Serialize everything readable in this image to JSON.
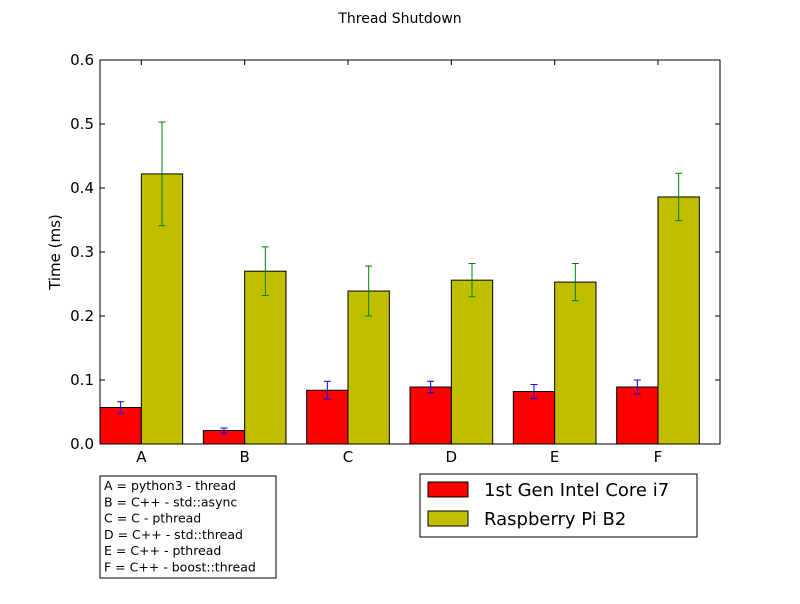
{
  "chart_data": {
    "type": "bar",
    "title": "Thread Shutdown",
    "xlabel": "",
    "ylabel": "Time (ms)",
    "ylim": [
      0,
      0.6
    ],
    "yticks": [
      "0.0",
      "0.1",
      "0.2",
      "0.3",
      "0.4",
      "0.5",
      "0.6"
    ],
    "categories": [
      "A",
      "B",
      "C",
      "D",
      "E",
      "F"
    ],
    "series": [
      {
        "name": "1st Gen Intel Core i7",
        "color": "#ff0000",
        "error_color": "#0000ff",
        "values": [
          0.057,
          0.021,
          0.084,
          0.089,
          0.082,
          0.089
        ],
        "errors": [
          0.009,
          0.004,
          0.014,
          0.009,
          0.011,
          0.011
        ]
      },
      {
        "name": "Raspberry Pi B2",
        "color": "#bfbf00",
        "error_color": "#008000",
        "values": [
          0.422,
          0.27,
          0.239,
          0.256,
          0.253,
          0.386
        ],
        "errors": [
          0.081,
          0.038,
          0.039,
          0.026,
          0.029,
          0.037
        ]
      }
    ],
    "grid": false,
    "legend_position": "bottom-right, below axes",
    "annotation": [
      "A = python3 - thread",
      "B = C++ - std::async",
      "C = C - pthread",
      "D = C++ - std::thread",
      "E = C++ - pthread",
      "F = C++ - boost::thread"
    ]
  }
}
